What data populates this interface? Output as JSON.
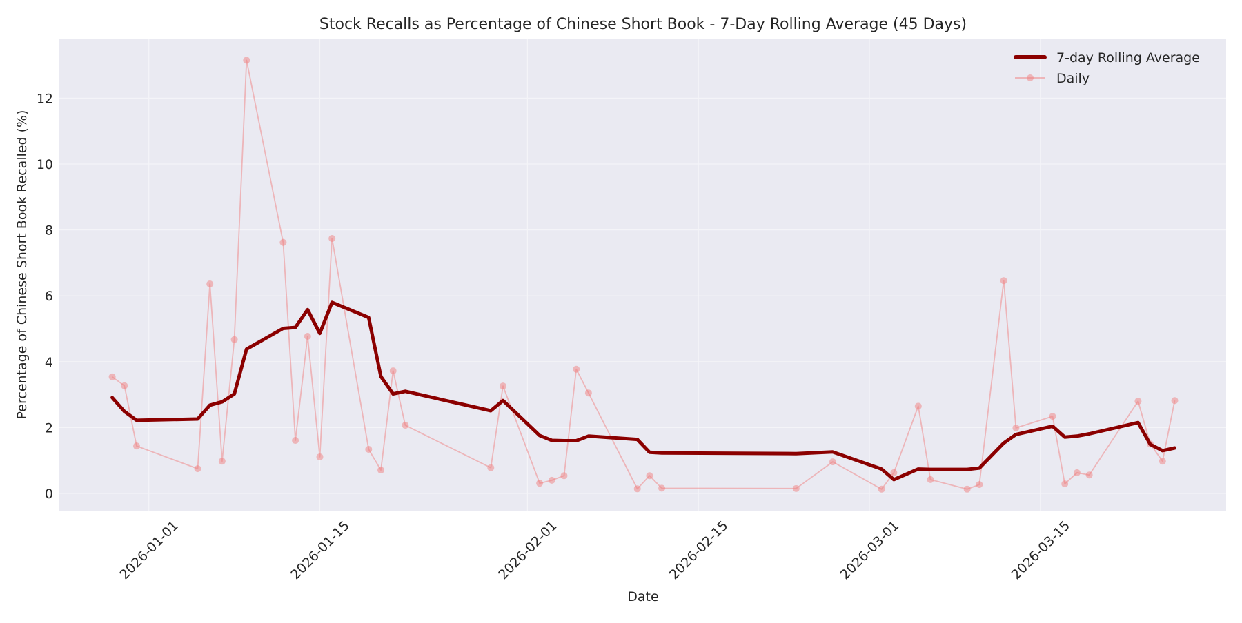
{
  "chart_data": {
    "type": "line",
    "title": "Stock Recalls as Percentage of Chinese Short Book - 7-Day Rolling Average (45 Days)",
    "xlabel": "Date",
    "ylabel": "Percentage of Chinese Short Book Recalled (%)",
    "ylim": [
      -0.55,
      13.75
    ],
    "yticks": [
      0,
      2,
      4,
      6,
      8,
      10,
      12
    ],
    "xticks": [
      "2026-01-01",
      "2026-01-15",
      "2026-02-01",
      "2026-02-15",
      "2026-03-01",
      "2026-03-15"
    ],
    "xlim": [
      "2025-12-25",
      "2026-03-30"
    ],
    "grid": true,
    "legend_position": "upper right",
    "x": [
      "2025-12-29",
      "2025-12-30",
      "2025-12-31",
      "2026-01-05",
      "2026-01-06",
      "2026-01-07",
      "2026-01-08",
      "2026-01-09",
      "2026-01-12",
      "2026-01-13",
      "2026-01-14",
      "2026-01-15",
      "2026-01-16",
      "2026-01-19",
      "2026-01-20",
      "2026-01-21",
      "2026-01-22",
      "2026-01-29",
      "2026-01-30",
      "2026-02-02",
      "2026-02-03",
      "2026-02-04",
      "2026-02-05",
      "2026-02-06",
      "2026-02-10",
      "2026-02-11",
      "2026-02-12",
      "2026-02-23",
      "2026-02-26",
      "2026-03-02",
      "2026-03-03",
      "2026-03-05",
      "2026-03-06",
      "2026-03-09",
      "2026-03-10",
      "2026-03-12",
      "2026-03-13",
      "2026-03-16",
      "2026-03-17",
      "2026-03-18",
      "2026-03-19",
      "2026-03-23",
      "2026-03-24",
      "2026-03-25",
      "2026-03-26"
    ],
    "series": [
      {
        "name": "7-day Rolling Average",
        "color": "#8b0000",
        "linewidth": 5,
        "marker": "none",
        "values": [
          2.91,
          2.49,
          2.22,
          2.26,
          2.68,
          2.78,
          3.02,
          4.38,
          5.01,
          5.04,
          5.58,
          4.86,
          5.8,
          5.34,
          3.55,
          3.02,
          3.1,
          2.51,
          2.82,
          1.76,
          1.61,
          1.6,
          1.6,
          1.74,
          1.64,
          1.25,
          1.23,
          1.21,
          1.26,
          0.74,
          0.42,
          0.74,
          0.73,
          0.73,
          0.77,
          1.53,
          1.79,
          2.04,
          1.71,
          1.74,
          1.81,
          2.15,
          1.49,
          1.3,
          1.38
        ]
      },
      {
        "name": "Daily",
        "color": "#f08080",
        "linewidth": 1.8,
        "marker": "circle",
        "alpha": 0.5,
        "values": [
          3.54,
          3.27,
          1.44,
          0.75,
          6.36,
          0.98,
          4.67,
          13.15,
          7.62,
          1.61,
          4.77,
          1.11,
          7.74,
          1.34,
          0.71,
          3.72,
          2.07,
          0.78,
          3.26,
          0.31,
          0.4,
          0.54,
          3.77,
          3.05,
          0.14,
          0.54,
          0.16,
          0.15,
          0.96,
          0.13,
          0.63,
          2.65,
          0.42,
          0.13,
          0.27,
          6.46,
          1.99,
          2.34,
          0.29,
          0.63,
          0.56,
          2.8,
          1.5,
          0.98,
          2.82
        ]
      }
    ]
  },
  "colors": {
    "plot_background": "#eaeaf2",
    "grid": "#f4f4f8",
    "text": "#262626"
  }
}
